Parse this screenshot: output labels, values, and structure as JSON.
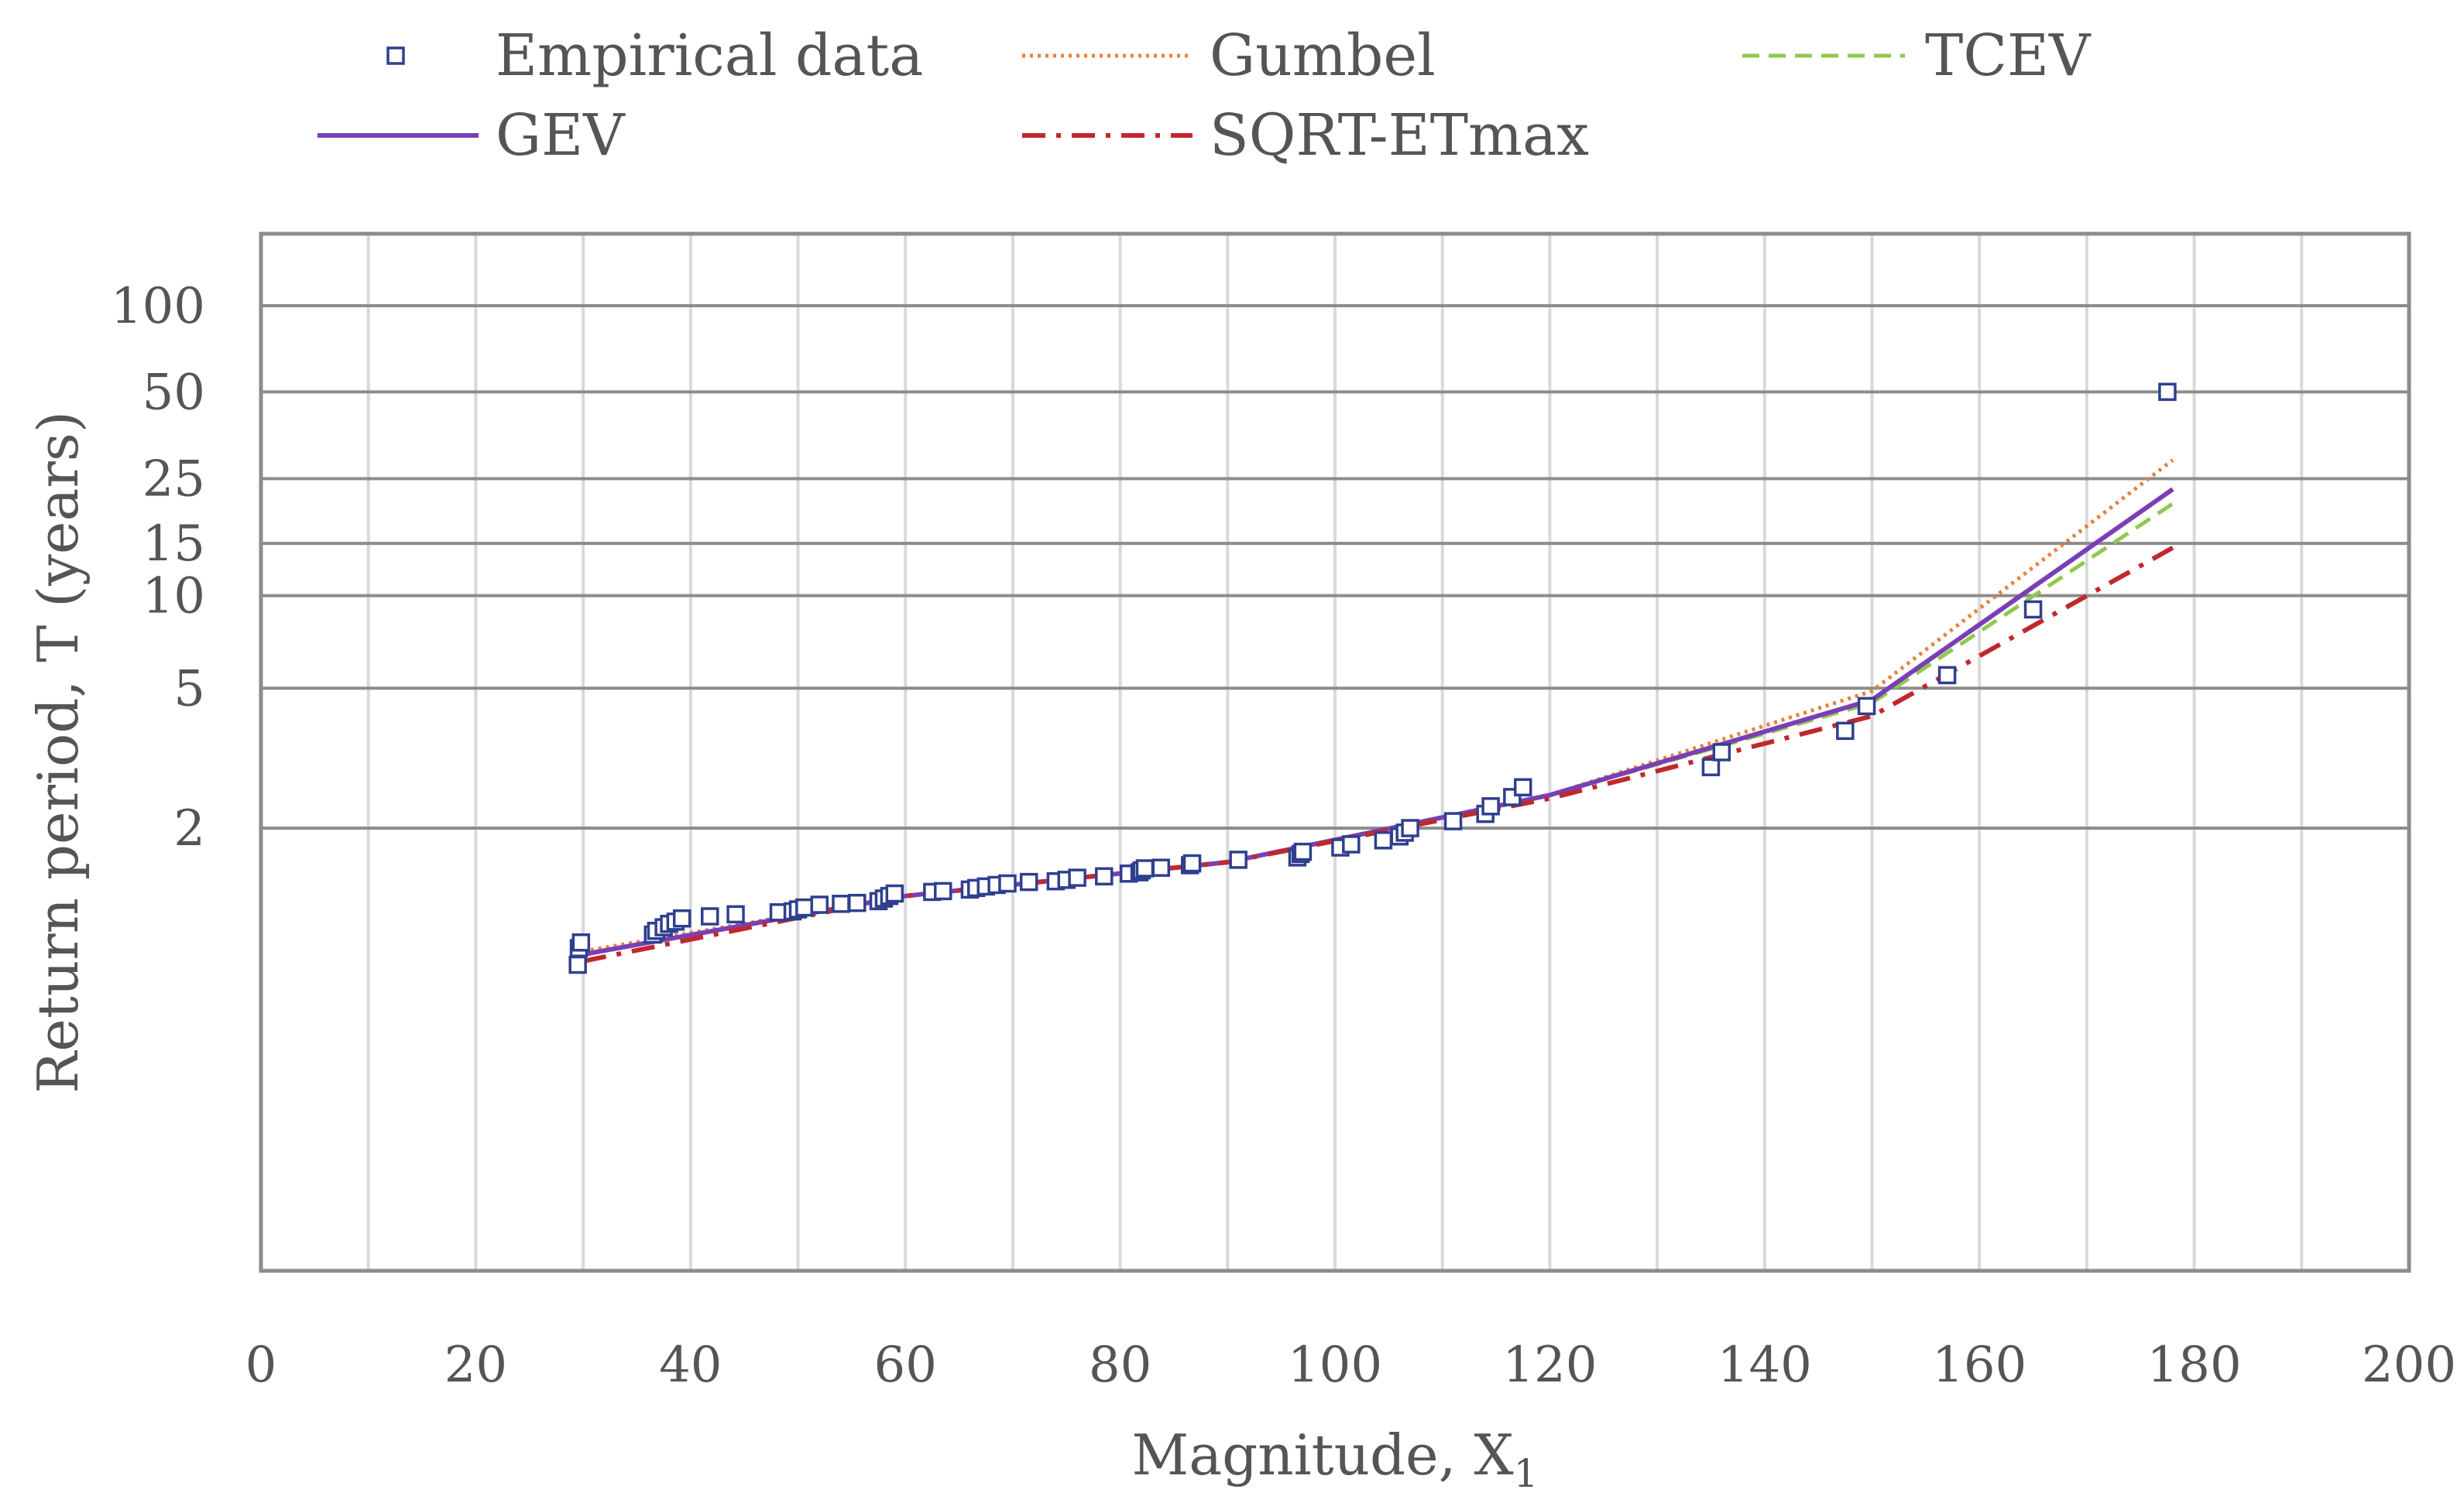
{
  "chart_data": {
    "type": "scatter",
    "title": "",
    "xlabel": "Magnitude, X",
    "xlabel_subscript": "1",
    "ylabel": "Return period, T (years)",
    "xlim": [
      0,
      200
    ],
    "x_ticks": [
      "0",
      "20",
      "40",
      "60",
      "80",
      "100",
      "120",
      "140",
      "160",
      "180",
      "200"
    ],
    "y_axis_scale": "gumbel-reduced-variate",
    "y_ticks": [
      {
        "value": 100,
        "label": "100"
      },
      {
        "value": 50,
        "label": "50"
      },
      {
        "value": 25,
        "label": "25"
      },
      {
        "value": 15,
        "label": "15"
      },
      {
        "value": 10,
        "label": "10"
      },
      {
        "value": 5,
        "label": "5"
      },
      {
        "value": 2,
        "label": "2"
      }
    ],
    "legend_position": "top",
    "legend": [
      {
        "key": "empirical",
        "label": "Empirical data"
      },
      {
        "key": "gumbel",
        "label": "Gumbel"
      },
      {
        "key": "tcev",
        "label": "TCEV"
      },
      {
        "key": "gev",
        "label": "GEV"
      },
      {
        "key": "sqrt",
        "label": "SQRT-ETmax"
      }
    ],
    "empirical_data": [
      {
        "x": 29.5,
        "T": 1.14
      },
      {
        "x": 29.6,
        "T": 1.19
      },
      {
        "x": 29.8,
        "T": 1.21
      },
      {
        "x": 36.5,
        "T": 1.24
      },
      {
        "x": 36.8,
        "T": 1.255
      },
      {
        "x": 37.5,
        "T": 1.27
      },
      {
        "x": 38.0,
        "T": 1.285
      },
      {
        "x": 38.6,
        "T": 1.295
      },
      {
        "x": 39.2,
        "T": 1.31
      },
      {
        "x": 41.8,
        "T": 1.32
      },
      {
        "x": 44.2,
        "T": 1.33
      },
      {
        "x": 48.2,
        "T": 1.34
      },
      {
        "x": 49.5,
        "T": 1.345
      },
      {
        "x": 50.0,
        "T": 1.355
      },
      {
        "x": 50.6,
        "T": 1.365
      },
      {
        "x": 52.0,
        "T": 1.38
      },
      {
        "x": 54.0,
        "T": 1.385
      },
      {
        "x": 55.5,
        "T": 1.39
      },
      {
        "x": 57.5,
        "T": 1.4
      },
      {
        "x": 58.0,
        "T": 1.415
      },
      {
        "x": 58.5,
        "T": 1.43
      },
      {
        "x": 59.0,
        "T": 1.445
      },
      {
        "x": 62.5,
        "T": 1.455
      },
      {
        "x": 63.5,
        "T": 1.46
      },
      {
        "x": 66.0,
        "T": 1.47
      },
      {
        "x": 66.6,
        "T": 1.48
      },
      {
        "x": 67.5,
        "T": 1.49
      },
      {
        "x": 68.5,
        "T": 1.5
      },
      {
        "x": 69.5,
        "T": 1.51
      },
      {
        "x": 71.5,
        "T": 1.52
      },
      {
        "x": 74.0,
        "T": 1.525
      },
      {
        "x": 75.0,
        "T": 1.535
      },
      {
        "x": 76.0,
        "T": 1.55
      },
      {
        "x": 78.5,
        "T": 1.56
      },
      {
        "x": 80.8,
        "T": 1.58
      },
      {
        "x": 81.8,
        "T": 1.59
      },
      {
        "x": 82.0,
        "T": 1.605
      },
      {
        "x": 82.3,
        "T": 1.62
      },
      {
        "x": 83.8,
        "T": 1.625
      },
      {
        "x": 86.5,
        "T": 1.645
      },
      {
        "x": 86.7,
        "T": 1.66
      },
      {
        "x": 91.0,
        "T": 1.69
      },
      {
        "x": 96.5,
        "T": 1.71
      },
      {
        "x": 96.8,
        "T": 1.74
      },
      {
        "x": 97.0,
        "T": 1.76
      },
      {
        "x": 100.5,
        "T": 1.8
      },
      {
        "x": 101.5,
        "T": 1.83
      },
      {
        "x": 104.5,
        "T": 1.87
      },
      {
        "x": 106.0,
        "T": 1.91
      },
      {
        "x": 106.5,
        "T": 1.95
      },
      {
        "x": 107.0,
        "T": 2.0
      },
      {
        "x": 111.0,
        "T": 2.08
      },
      {
        "x": 114.0,
        "T": 2.17
      },
      {
        "x": 114.5,
        "T": 2.27
      },
      {
        "x": 116.5,
        "T": 2.4
      },
      {
        "x": 117.5,
        "T": 2.55
      },
      {
        "x": 135.0,
        "T": 2.9
      },
      {
        "x": 136.0,
        "T": 3.2
      },
      {
        "x": 147.5,
        "T": 3.7
      },
      {
        "x": 149.5,
        "T": 4.4
      },
      {
        "x": 157.0,
        "T": 5.5
      },
      {
        "x": 165.0,
        "T": 9.0
      },
      {
        "x": 177.5,
        "T": 50.0
      }
    ],
    "series": [
      {
        "key": "gumbel",
        "name": "Gumbel",
        "points": [
          [
            30,
            1.18
          ],
          [
            60,
            1.43
          ],
          [
            90,
            1.67
          ],
          [
            120,
            2.43
          ],
          [
            150,
            4.9
          ],
          [
            178,
            29.0
          ]
        ]
      },
      {
        "key": "tcev",
        "name": "TCEV",
        "points": [
          [
            30,
            1.17
          ],
          [
            60,
            1.43
          ],
          [
            90,
            1.67
          ],
          [
            120,
            2.43
          ],
          [
            150,
            4.5
          ],
          [
            178,
            20.5
          ]
        ]
      },
      {
        "key": "gev",
        "name": "GEV",
        "points": [
          [
            30,
            1.17
          ],
          [
            60,
            1.43
          ],
          [
            90,
            1.67
          ],
          [
            120,
            2.43
          ],
          [
            150,
            4.6
          ],
          [
            178,
            23.0
          ]
        ]
      },
      {
        "key": "sqrt",
        "name": "SQRT-ETmax",
        "points": [
          [
            30,
            1.15
          ],
          [
            60,
            1.43
          ],
          [
            90,
            1.67
          ],
          [
            120,
            2.38
          ],
          [
            150,
            4.1
          ],
          [
            178,
            14.5
          ]
        ]
      }
    ],
    "colors": {
      "empirical": "#2f3f8f",
      "gumbel": "#e8823a",
      "tcev": "#92c84f",
      "gev": "#7a3fb5",
      "sqrt": "#c0282d"
    }
  }
}
